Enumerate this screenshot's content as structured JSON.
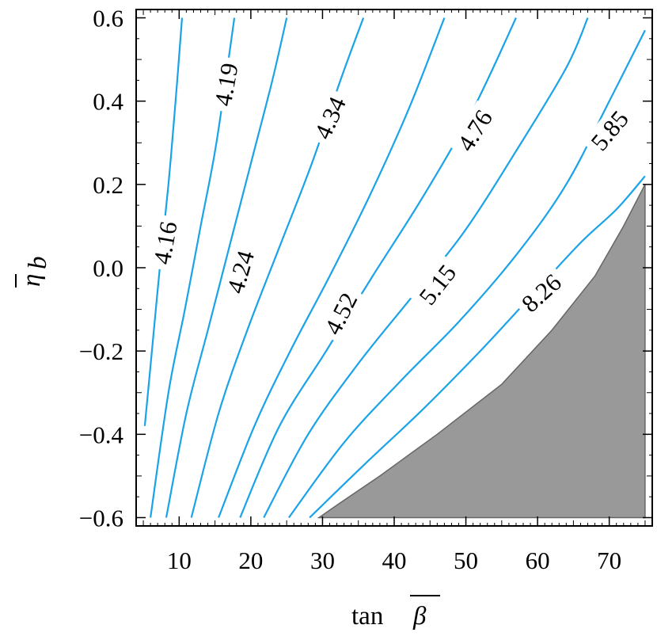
{
  "chart_data": {
    "type": "contour",
    "xlabel": "tan β̄",
    "ylabel": "η̄_b",
    "xlim": [
      4,
      76
    ],
    "ylim": [
      -0.62,
      0.62
    ],
    "x_ticks": [
      10,
      20,
      30,
      40,
      50,
      60,
      70
    ],
    "y_ticks": [
      0.6,
      0.4,
      0.2,
      0.0,
      -0.2,
      -0.4,
      -0.6
    ],
    "x_tick_labels": [
      "10",
      "20",
      "30",
      "40",
      "50",
      "60",
      "70"
    ],
    "y_tick_labels": [
      "0.6",
      "0.4",
      "0.2",
      "0.0",
      "−0.2",
      "−0.4",
      "−0.6"
    ],
    "grid": false,
    "contour_color": "#1aa3e8",
    "excluded_region_color": "#999999",
    "excluded_region": {
      "points": [
        [
          29.5,
          -0.6
        ],
        [
          75,
          -0.6
        ],
        [
          75,
          0.2
        ],
        [
          72,
          0.1
        ],
        [
          68,
          -0.02
        ],
        [
          62,
          -0.15
        ],
        [
          55,
          -0.28
        ],
        [
          46,
          -0.4
        ],
        [
          38,
          -0.5
        ],
        [
          32,
          -0.57
        ]
      ]
    },
    "contours": [
      {
        "label": "4.16",
        "points": [
          [
            5.2,
            -0.38
          ],
          [
            6.2,
            -0.2
          ],
          [
            7.3,
            0.0
          ],
          [
            8.5,
            0.2
          ],
          [
            9.5,
            0.4
          ],
          [
            10.4,
            0.6
          ]
        ],
        "label_at": [
          8.0,
          0.06
        ],
        "label_angle": -80
      },
      {
        "label": "4.19",
        "points": [
          [
            6.0,
            -0.6
          ],
          [
            8.5,
            -0.3
          ],
          [
            10.8,
            -0.1
          ],
          [
            13.0,
            0.1
          ],
          [
            15.2,
            0.3
          ],
          [
            17.7,
            0.6
          ]
        ],
        "label_at": [
          16.5,
          0.44
        ],
        "label_angle": -80
      },
      {
        "label": "4.24",
        "points": [
          [
            8.2,
            -0.6
          ],
          [
            11.0,
            -0.35
          ],
          [
            14.0,
            -0.15
          ],
          [
            17.0,
            0.05
          ],
          [
            20.0,
            0.25
          ],
          [
            23.0,
            0.45
          ],
          [
            25.0,
            0.6
          ]
        ],
        "label_at": [
          18.5,
          -0.01
        ],
        "label_angle": -74
      },
      {
        "label": "4.34",
        "points": [
          [
            11.7,
            -0.6
          ],
          [
            15.5,
            -0.35
          ],
          [
            19.5,
            -0.15
          ],
          [
            24.0,
            0.05
          ],
          [
            28.5,
            0.25
          ],
          [
            32.5,
            0.45
          ],
          [
            35.7,
            0.6
          ]
        ],
        "label_at": [
          31.0,
          0.36
        ],
        "label_angle": -66
      },
      {
        "label": "4.52",
        "points": [
          [
            15.5,
            -0.6
          ],
          [
            20.5,
            -0.38
          ],
          [
            25.5,
            -0.2
          ],
          [
            31.0,
            -0.02
          ],
          [
            36.5,
            0.17
          ],
          [
            42.0,
            0.38
          ],
          [
            47.0,
            0.6
          ]
        ],
        "label_at": [
          32.5,
          -0.11
        ],
        "label_angle": -63
      },
      {
        "label": "4.76",
        "points": [
          [
            18.5,
            -0.6
          ],
          [
            24.0,
            -0.38
          ],
          [
            30.5,
            -0.2
          ],
          [
            37.0,
            -0.02
          ],
          [
            44.0,
            0.17
          ],
          [
            51.0,
            0.38
          ],
          [
            57.0,
            0.6
          ]
        ],
        "label_at": [
          51.2,
          0.33
        ],
        "label_angle": -58
      },
      {
        "label": "5.15",
        "points": [
          [
            21.8,
            -0.6
          ],
          [
            28.0,
            -0.4
          ],
          [
            35.0,
            -0.23
          ],
          [
            42.0,
            -0.08
          ],
          [
            49.5,
            0.08
          ],
          [
            57.0,
            0.28
          ],
          [
            64.0,
            0.48
          ],
          [
            67.0,
            0.6
          ]
        ],
        "label_at": [
          46.0,
          -0.04
        ],
        "label_angle": -52
      },
      {
        "label": "5.85",
        "points": [
          [
            25.3,
            -0.6
          ],
          [
            33.0,
            -0.42
          ],
          [
            41.0,
            -0.27
          ],
          [
            49.0,
            -0.13
          ],
          [
            57.0,
            0.03
          ],
          [
            64.0,
            0.2
          ],
          [
            70.0,
            0.4
          ],
          [
            75.0,
            0.57
          ]
        ],
        "label_at": [
          70.0,
          0.33
        ],
        "label_angle": -50
      },
      {
        "label": "8.26",
        "points": [
          [
            28.2,
            -0.6
          ],
          [
            36.0,
            -0.47
          ],
          [
            44.0,
            -0.34
          ],
          [
            52.0,
            -0.2
          ],
          [
            59.0,
            -0.07
          ],
          [
            66.0,
            0.06
          ],
          [
            71.0,
            0.14
          ],
          [
            75.0,
            0.22
          ]
        ],
        "label_at": [
          60.5,
          -0.06
        ],
        "label_angle": -42
      }
    ]
  }
}
